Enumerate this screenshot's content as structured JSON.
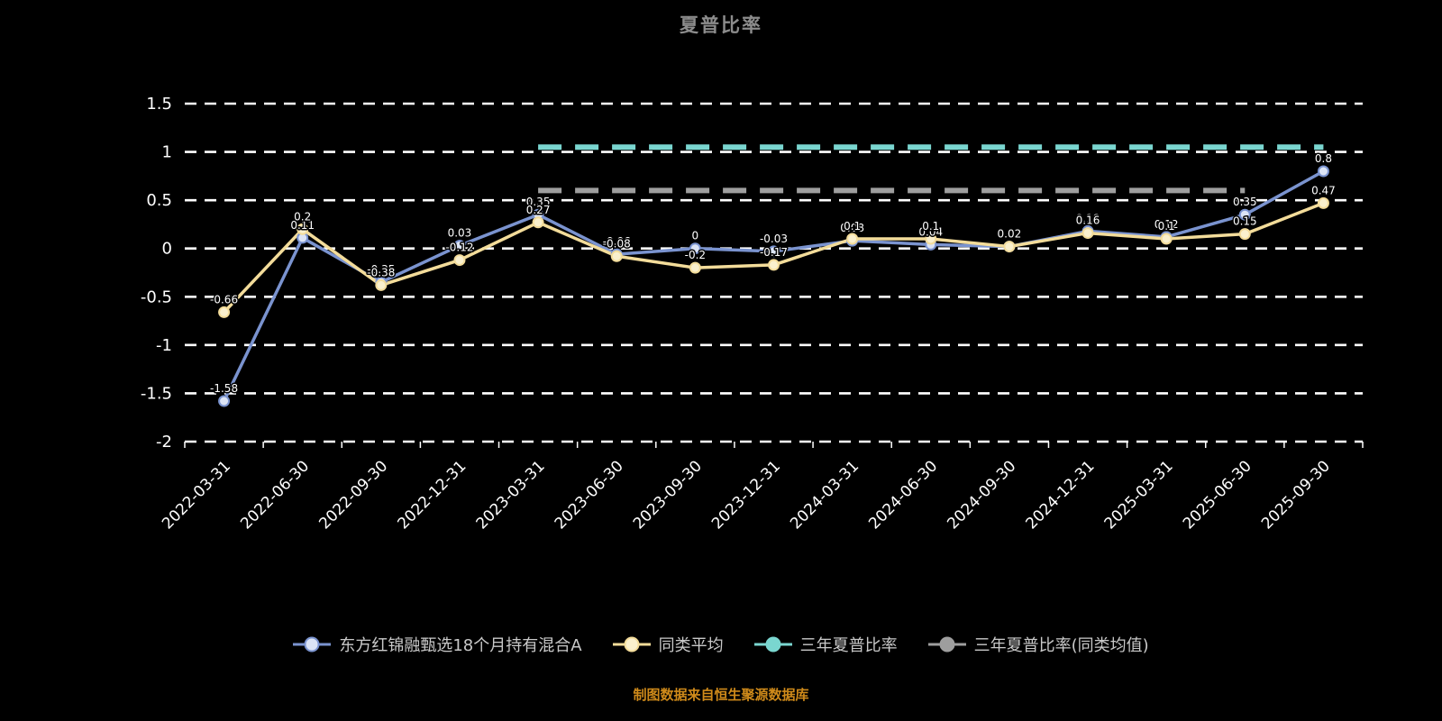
{
  "footer": {
    "text": "制图数据来自恒生聚源数据库"
  },
  "colors": {
    "background": "#000000",
    "grid": "#ffffff",
    "axis_text": "#ffffff",
    "title_text": "#8c8c8c",
    "footer_text": "#cf8a1a",
    "legend_text": "#c9c9c9",
    "label_text": "#ffffff",
    "label_halo": "#000000"
  },
  "chart_data": {
    "type": "line",
    "title": "夏普比率",
    "xlabel": "",
    "ylabel": "",
    "ylim": [
      -2,
      1.5
    ],
    "yticks": [
      1.5,
      1,
      0.5,
      0,
      -0.5,
      -1,
      -1.5,
      -2
    ],
    "grid": true,
    "gridline_style": "dashed",
    "legend_position": "bottom",
    "x": [
      "2022-03-31",
      "2022-06-30",
      "2022-09-30",
      "2022-12-31",
      "2023-03-31",
      "2023-06-30",
      "2023-09-30",
      "2023-12-31",
      "2024-03-31",
      "2024-06-30",
      "2024-09-30",
      "2024-12-31",
      "2025-03-31",
      "2025-06-30",
      "2025-09-30"
    ],
    "series": [
      {
        "name": "东方红锦融甄选18个月持有混合A",
        "color": "#7a93cf",
        "marker_fill": "#dce4f5",
        "style": "solid",
        "show_labels": true,
        "values": [
          -1.58,
          0.11,
          -0.35,
          0.03,
          0.35,
          -0.06,
          0,
          -0.03,
          0.08,
          0.04,
          0.02,
          0.18,
          0.12,
          0.35,
          0.8
        ]
      },
      {
        "name": "同类平均",
        "color": "#f3dc9a",
        "marker_fill": "#faf0cd",
        "style": "solid",
        "show_labels": true,
        "values": [
          -0.66,
          0.2,
          -0.38,
          -0.12,
          0.27,
          -0.08,
          -0.2,
          -0.17,
          0.1,
          0.1,
          0.02,
          0.16,
          0.1,
          0.15,
          0.47
        ]
      },
      {
        "name": "三年夏普比率",
        "color": "#7ad6d0",
        "marker_fill": "#7ad6d0",
        "style": "dashed",
        "show_labels": false,
        "values": [
          null,
          null,
          null,
          null,
          1.05,
          1.05,
          1.05,
          1.05,
          1.05,
          1.05,
          1.05,
          1.05,
          1.05,
          1.05,
          1.05
        ]
      },
      {
        "name": "三年夏普比率(同类均值)",
        "color": "#9e9e9e",
        "marker_fill": "#9e9e9e",
        "style": "dashed",
        "show_labels": false,
        "values": [
          null,
          null,
          null,
          null,
          0.6,
          0.6,
          0.6,
          0.6,
          0.6,
          0.6,
          0.6,
          0.6,
          0.6,
          0.6,
          null
        ]
      }
    ]
  }
}
